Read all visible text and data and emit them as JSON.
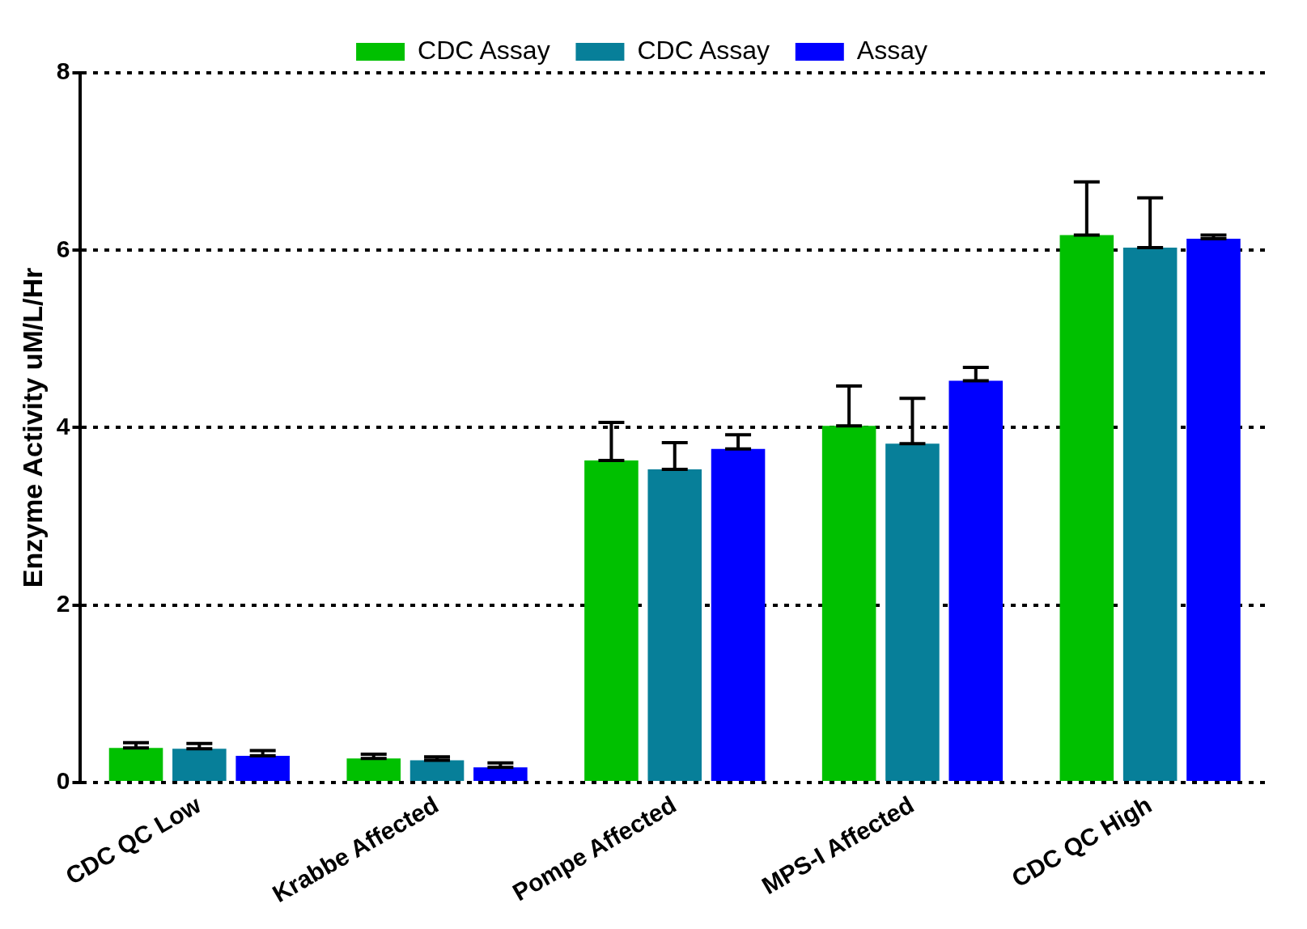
{
  "chart_data": {
    "type": "bar",
    "ylabel": "Enzyme Activity uM/L/Hr",
    "categories": [
      "CDC QC Low",
      "Krabbe Affected",
      "Pompe Affected",
      "MPS-I Affected",
      "CDC QC High"
    ],
    "series": [
      {
        "name": "CDC Assay",
        "color": "#00c000",
        "values": [
          0.39,
          0.27,
          3.63,
          4.02,
          6.17
        ],
        "errors": [
          [
            0.39,
            0.45
          ],
          [
            0.27,
            0.32
          ],
          [
            3.63,
            4.06
          ],
          [
            4.02,
            4.47
          ],
          [
            6.17,
            6.77
          ]
        ]
      },
      {
        "name": "CDC Assay",
        "color": "#077f99",
        "values": [
          0.38,
          0.25,
          3.53,
          3.82,
          6.03
        ],
        "errors": [
          [
            0.38,
            0.44
          ],
          [
            0.25,
            0.29
          ],
          [
            3.53,
            3.83
          ],
          [
            3.82,
            4.33
          ],
          [
            6.03,
            6.59
          ]
        ]
      },
      {
        "name": "Assay",
        "color": "#0000ff",
        "values": [
          0.3,
          0.17,
          3.76,
          4.53,
          6.13
        ],
        "errors": [
          [
            0.3,
            0.36
          ],
          [
            0.17,
            0.22
          ],
          [
            3.76,
            3.92
          ],
          [
            4.53,
            4.68
          ],
          [
            6.13,
            6.17
          ]
        ]
      }
    ],
    "ylim": [
      0,
      8
    ],
    "yticks": [
      0,
      2,
      4,
      6,
      8
    ],
    "grid": "y",
    "legend": "top"
  }
}
